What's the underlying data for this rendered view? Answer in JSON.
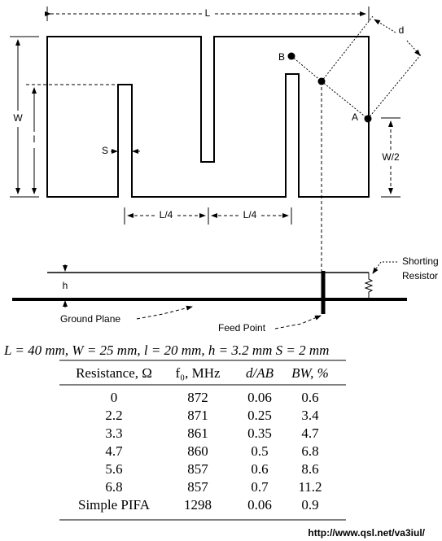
{
  "diagram": {
    "labels": {
      "L": "L",
      "d": "d",
      "B": "B",
      "A": "A",
      "W": "W",
      "l": "l",
      "S": "S",
      "W2": "W/2",
      "L4_left": "L/4",
      "L4_right": "L/4",
      "h": "h",
      "shorting_resistor": [
        "Shorting",
        "Resistor"
      ],
      "ground_plane": "Ground Plane",
      "feed_point": "Feed Point"
    }
  },
  "parameters": "L = 40 mm, W = 25 mm, l = 20 mm, h = 3.2 mm  S = 2 mm",
  "table": {
    "header": [
      "Resistance, Ω",
      "f₀, MHz",
      "d/AB",
      "BW, %"
    ],
    "rows": [
      [
        "0",
        872,
        0.06,
        0.6
      ],
      [
        2.2,
        871,
        0.25,
        3.4
      ],
      [
        3.3,
        861,
        0.35,
        4.7
      ],
      [
        4.7,
        860,
        0.5,
        6.8
      ],
      [
        5.6,
        857,
        0.6,
        8.6
      ],
      [
        6.8,
        857,
        0.7,
        11.2
      ],
      [
        "Simple PIFA",
        1298,
        0.06,
        0.9
      ]
    ]
  },
  "footer": "http://www.qsl.net/va3iul/"
}
